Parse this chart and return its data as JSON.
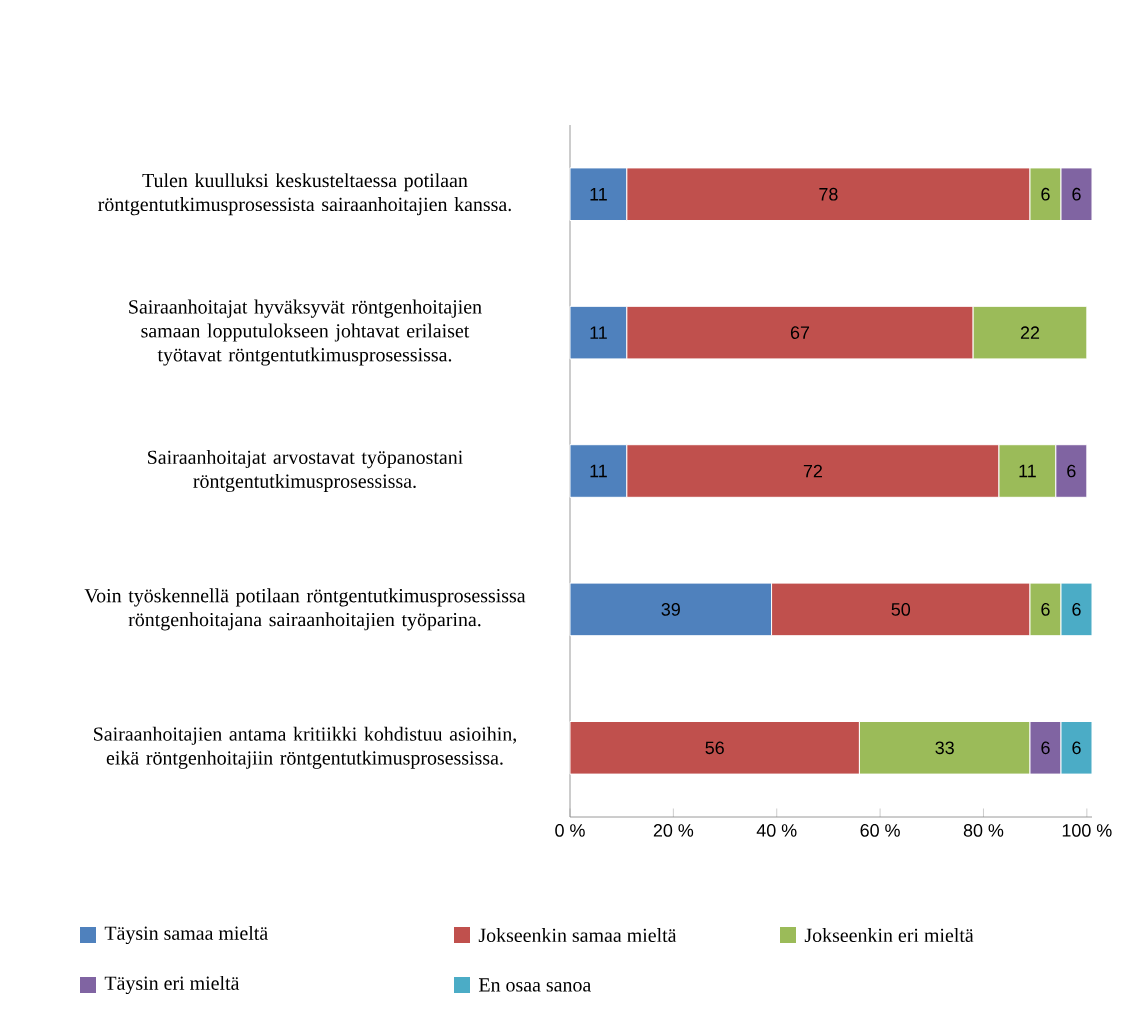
{
  "chart_data": {
    "type": "bar",
    "orientation": "horizontal",
    "stacked": true,
    "data_labels": true,
    "legend": "bottom",
    "categories": [
      "Tulen kuulluksi keskusteltaessa potilaan röntgentutkimusprosessista sairaanhoitajien kanssa.",
      "Sairaanhoitajat hyväksyvät röntgenhoitajien samaan lopputulokseen johtavat erilaiset työtavat röntgentutkimusprosessissa.",
      "Sairaanhoitajat arvostavat työpanostani röntgentutkimusprosessissa.",
      "Voin työskennellä potilaan röntgentutkimusprosessissa röntgenhoitajana sairaanhoitajien työparina.",
      "Sairaanhoitajien antama kritiikki kohdistuu asioihin, eikä röntgenhoitajiin röntgentutkimusprosessissa."
    ],
    "xlim": [
      0,
      101
    ],
    "xticks": [
      {
        "value": 0,
        "label": "0 %"
      },
      {
        "value": 20,
        "label": "20 %"
      },
      {
        "value": 40,
        "label": "40 %"
      },
      {
        "value": 60,
        "label": "60 %"
      },
      {
        "value": 80,
        "label": "80 %"
      },
      {
        "value": 100,
        "label": "100 %"
      }
    ],
    "series": [
      {
        "name": "Täysin samaa mieltä",
        "color": "#4f81bd",
        "values": [
          11,
          11,
          11,
          39,
          null
        ]
      },
      {
        "name": "Jokseenkin samaa mieltä",
        "color": "#c0504d",
        "values": [
          78,
          67,
          72,
          50,
          56
        ]
      },
      {
        "name": "Jokseenkin eri mieltä",
        "color": "#9bbb59",
        "values": [
          6,
          22,
          11,
          6,
          33
        ]
      },
      {
        "name": "Täysin eri mieltä",
        "color": "#8064a2",
        "values": [
          6,
          null,
          6,
          null,
          6
        ]
      },
      {
        "name": "En osaa sanoa",
        "color": "#4bacc6",
        "values": [
          null,
          null,
          null,
          6,
          6
        ]
      }
    ]
  }
}
